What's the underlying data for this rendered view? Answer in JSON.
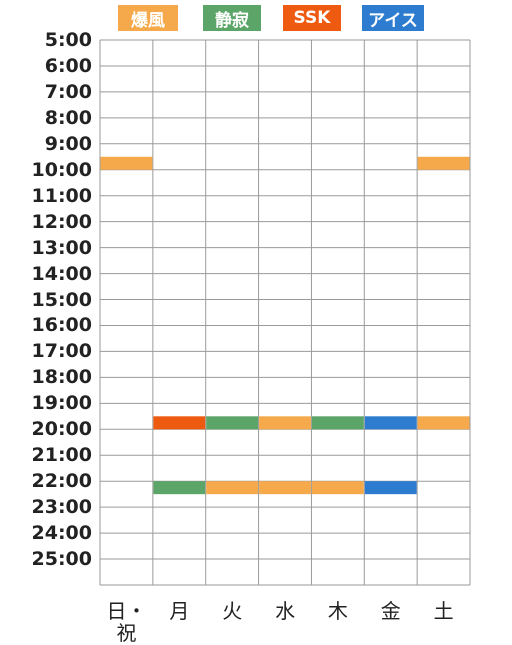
{
  "legend": [
    {
      "label": "爆風",
      "color": "#f5a94a"
    },
    {
      "label": "静寂",
      "color": "#5aa567"
    },
    {
      "label": "SSK",
      "color": "#ee5a10"
    },
    {
      "label": "アイス",
      "color": "#2e7cd0"
    }
  ],
  "chart_data": {
    "type": "timetable",
    "y_axis_labels": [
      "5:00",
      "6:00",
      "7:00",
      "8:00",
      "9:00",
      "10:00",
      "11:00",
      "12:00",
      "13:00",
      "14:00",
      "15:00",
      "16:00",
      "17:00",
      "18:00",
      "19:00",
      "20:00",
      "21:00",
      "22:00",
      "23:00",
      "24:00",
      "25:00"
    ],
    "y_range_hours": [
      5,
      26
    ],
    "days": [
      "日・祝",
      "月",
      "火",
      "水",
      "木",
      "金",
      "土"
    ],
    "grid": true,
    "events": [
      {
        "day": 0,
        "start": 9.5,
        "end": 10.0,
        "series": "爆風"
      },
      {
        "day": 6,
        "start": 9.5,
        "end": 10.0,
        "series": "爆風"
      },
      {
        "day": 1,
        "start": 19.5,
        "end": 20.0,
        "series": "SSK"
      },
      {
        "day": 2,
        "start": 19.5,
        "end": 20.0,
        "series": "静寂"
      },
      {
        "day": 3,
        "start": 19.5,
        "end": 20.0,
        "series": "爆風"
      },
      {
        "day": 4,
        "start": 19.5,
        "end": 20.0,
        "series": "静寂"
      },
      {
        "day": 5,
        "start": 19.5,
        "end": 20.0,
        "series": "アイス"
      },
      {
        "day": 6,
        "start": 19.5,
        "end": 20.0,
        "series": "爆風"
      },
      {
        "day": 1,
        "start": 22.0,
        "end": 22.5,
        "series": "静寂"
      },
      {
        "day": 2,
        "start": 22.0,
        "end": 22.5,
        "series": "爆風"
      },
      {
        "day": 3,
        "start": 22.0,
        "end": 22.5,
        "series": "爆風"
      },
      {
        "day": 4,
        "start": 22.0,
        "end": 22.5,
        "series": "爆風"
      },
      {
        "day": 5,
        "start": 22.0,
        "end": 22.5,
        "series": "アイス"
      }
    ]
  }
}
